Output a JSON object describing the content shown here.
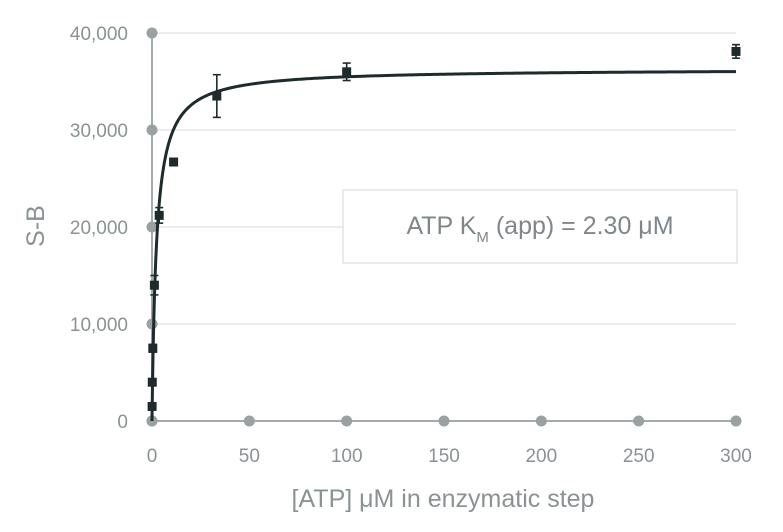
{
  "chart_data": {
    "type": "scatter",
    "xlabel": "[ATP] μM in enzymatic step",
    "ylabel": "S-B",
    "xlim": [
      0,
      300
    ],
    "ylim": [
      0,
      40000
    ],
    "x_ticks": [
      0,
      50,
      100,
      150,
      200,
      250,
      300
    ],
    "y_ticks": [
      0,
      10000,
      20000,
      30000,
      40000
    ],
    "x_tick_labels": [
      "0",
      "50",
      "100",
      "150",
      "200",
      "250",
      "300"
    ],
    "y_tick_labels": [
      "0",
      "10,000",
      "20,000",
      "30,000",
      "40,000"
    ],
    "grid": "horizontal",
    "series": [
      {
        "points": [
          {
            "x": 0.05,
            "y": 1500,
            "err": 200
          },
          {
            "x": 0.14,
            "y": 4000,
            "err": 300
          },
          {
            "x": 0.41,
            "y": 7500,
            "err": 400
          },
          {
            "x": 1.23,
            "y": 14000,
            "err": 1000
          },
          {
            "x": 3.7,
            "y": 21200,
            "err": 800
          },
          {
            "x": 11.1,
            "y": 26700,
            "err": 300
          },
          {
            "x": 33.3,
            "y": 33500,
            "err": 2200
          },
          {
            "x": 100,
            "y": 36000,
            "err": 900
          },
          {
            "x": 300,
            "y": 38100,
            "err": 700
          }
        ]
      }
    ],
    "fit": {
      "model": "Michaelis-Menten",
      "vmax": 36300,
      "km": 2.3
    },
    "annotation": {
      "prefix": "ATP K",
      "subscript": "M",
      "suffix": " (app) = 2.30 μM"
    },
    "colors": {
      "markers": "#1e2a2c",
      "fit_line": "#1e2a2c",
      "axis": "#a4abad",
      "grid": "#e3e6e7",
      "tick_dots": "#9aa1a3",
      "text": "#8a9294",
      "annotation_border": "#dcdfe0"
    }
  }
}
